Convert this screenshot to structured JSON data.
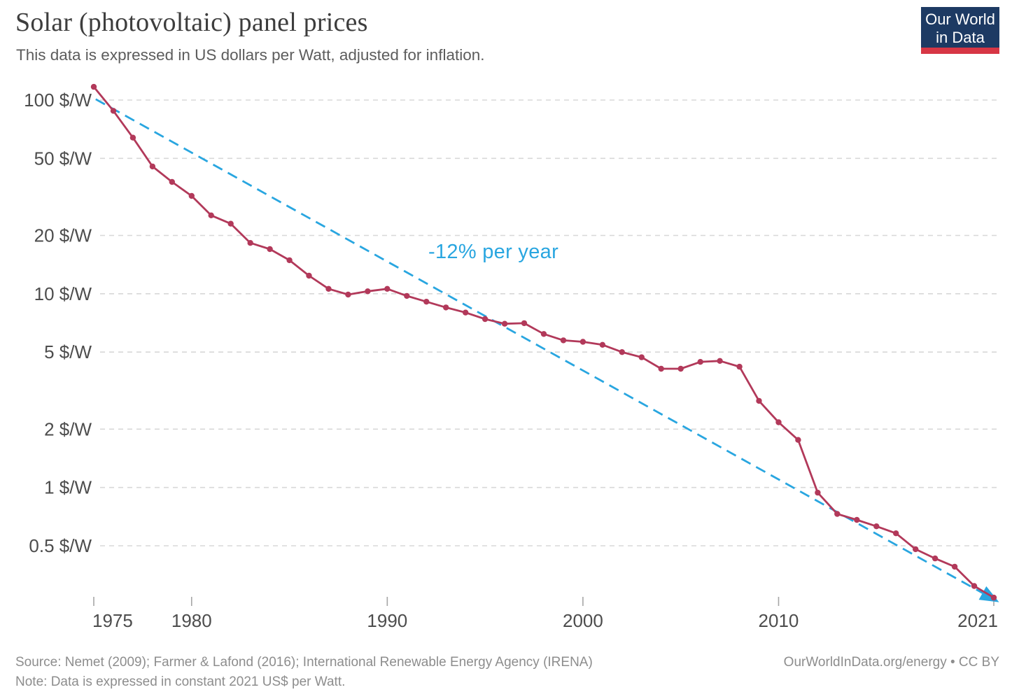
{
  "header": {
    "title": "Solar (photovoltaic) panel prices",
    "subtitle": "This data is expressed in US dollars per Watt, adjusted for inflation.",
    "logo": {
      "line1": "Our World",
      "line2": "in Data"
    }
  },
  "footer": {
    "source": "Source: Nemet (2009); Farmer & Lafond (2016); International Renewable Energy Agency (IRENA)",
    "note": "Note: Data is expressed in constant 2021 US$ per Watt.",
    "credit": "OurWorldInData.org/energy • CC BY"
  },
  "colors": {
    "series_red": "#b2395a",
    "trend_blue": "#29a6e0",
    "gridline": "#d8d8d8",
    "axis_label": "#4d4d4d",
    "tick_mark": "#a6a6a6",
    "logo_navy": "#1d3a63",
    "logo_red": "#d73645"
  },
  "chart_data": {
    "type": "line",
    "title": "Solar (photovoltaic) panel prices",
    "xlabel": "",
    "ylabel": "US dollars per Watt",
    "y_scale": "log",
    "xlim": [
      1975,
      2021
    ],
    "ylim": [
      0.26,
      117
    ],
    "grid": true,
    "y_ticks": [
      100,
      50,
      20,
      10,
      5,
      2,
      1,
      0.5
    ],
    "y_tick_labels": [
      "100 $/W",
      "50 $/W",
      "20 $/W",
      "10 $/W",
      "5 $/W",
      "2 $/W",
      "1 $/W",
      "0.5 $/W"
    ],
    "x_ticks": [
      1975,
      1980,
      1990,
      2000,
      2010,
      2021
    ],
    "x_tick_labels": [
      "1975",
      "1980",
      "1990",
      "2000",
      "2010",
      "2021"
    ],
    "series": [
      {
        "name": "solar-pv-panel-price",
        "color": "#b2395a",
        "years": [
          1975,
          1976,
          1977,
          1978,
          1979,
          1980,
          1981,
          1982,
          1983,
          1984,
          1985,
          1986,
          1987,
          1988,
          1989,
          1990,
          1991,
          1992,
          1993,
          1994,
          1995,
          1996,
          1997,
          1998,
          1999,
          2000,
          2001,
          2002,
          2003,
          2004,
          2005,
          2006,
          2007,
          2008,
          2009,
          2010,
          2011,
          2012,
          2013,
          2014,
          2015,
          2016,
          2017,
          2018,
          2019,
          2020,
          2021
        ],
        "values": [
          117,
          88,
          64,
          45.4,
          37.8,
          32,
          25.4,
          23,
          18.3,
          17,
          14.9,
          12.4,
          10.6,
          9.9,
          10.3,
          10.6,
          9.75,
          9.1,
          8.5,
          8.0,
          7.4,
          7.0,
          7.05,
          6.2,
          5.75,
          5.65,
          5.45,
          5.0,
          4.7,
          4.1,
          4.1,
          4.45,
          4.5,
          4.2,
          2.8,
          2.17,
          1.76,
          0.94,
          0.73,
          0.68,
          0.63,
          0.58,
          0.48,
          0.43,
          0.39,
          0.31,
          0.27
        ]
      }
    ],
    "trend": {
      "label": "-12% per year",
      "color": "#29a6e0",
      "style": "dashed-arrow",
      "start": {
        "year": 1975.1,
        "value": 101
      },
      "end": {
        "year": 2021.05,
        "value": 0.263
      }
    }
  }
}
